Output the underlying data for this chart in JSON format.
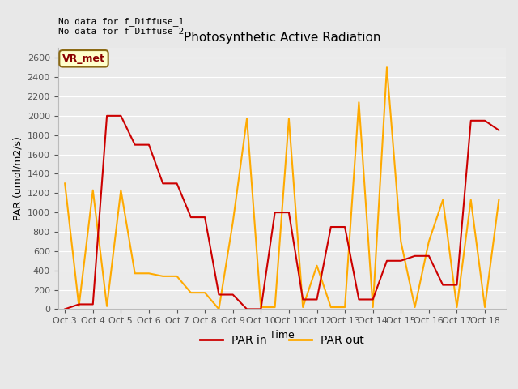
{
  "title": "Photosynthetic Active Radiation",
  "ylabel": "PAR (umol/m2/s)",
  "xlabel": "Time",
  "annotation_text": "No data for f_Diffuse_1\nNo data for f_Diffuse_2",
  "legend_label_text": "VR_met",
  "fig_bg_color": "#e8e8e8",
  "plot_bg_color": "#ebebeb",
  "x_labels": [
    "Oct 3",
    "Oct 4",
    "Oct 5",
    "Oct 6",
    "Oct 7",
    "Oct 8",
    "Oct 9",
    "Oct 10",
    "Oct 11",
    "Oct 12",
    "Oct 13",
    "Oct 14",
    "Oct 15",
    "Oct 16",
    "Oct 17",
    "Oct 18"
  ],
  "x_tick_positions": [
    0,
    2,
    4,
    6,
    8,
    10,
    12,
    14,
    16,
    18,
    20,
    22,
    24,
    26,
    28,
    30
  ],
  "par_in_x": [
    0,
    1,
    2,
    3,
    4,
    5,
    6,
    7,
    8,
    9,
    10,
    11,
    12,
    13,
    14,
    15,
    16,
    17,
    18,
    19,
    20,
    21,
    22,
    23,
    24,
    25,
    26,
    27,
    28,
    29,
    30,
    31
  ],
  "par_in_y": [
    0,
    50,
    50,
    2000,
    2000,
    1700,
    1700,
    1300,
    1300,
    950,
    950,
    150,
    150,
    0,
    0,
    1000,
    1000,
    100,
    100,
    850,
    850,
    100,
    100,
    500,
    500,
    550,
    550,
    250,
    250,
    1950,
    1950,
    1850
  ],
  "par_out_x": [
    0,
    1,
    2,
    3,
    4,
    5,
    6,
    7,
    8,
    9,
    10,
    11,
    12,
    13,
    14,
    15,
    16,
    17,
    18,
    19,
    20,
    21,
    22,
    23,
    24,
    25,
    26,
    27,
    28,
    29,
    30,
    31
  ],
  "par_out_y": [
    1300,
    30,
    1230,
    30,
    1230,
    370,
    370,
    340,
    340,
    170,
    170,
    0,
    900,
    1970,
    20,
    20,
    1970,
    20,
    450,
    20,
    20,
    2140,
    20,
    2500,
    700,
    20,
    700,
    1130,
    20,
    1130,
    20,
    1130
  ],
  "par_in_color": "#cc0000",
  "par_out_color": "#ffaa00",
  "ylim": [
    0,
    2700
  ],
  "yticks": [
    0,
    200,
    400,
    600,
    800,
    1000,
    1200,
    1400,
    1600,
    1800,
    2000,
    2200,
    2400,
    2600
  ],
  "line_width": 1.5,
  "grid_color": "#ffffff",
  "spine_color": "#bbbbbb",
  "tick_color": "#555555"
}
